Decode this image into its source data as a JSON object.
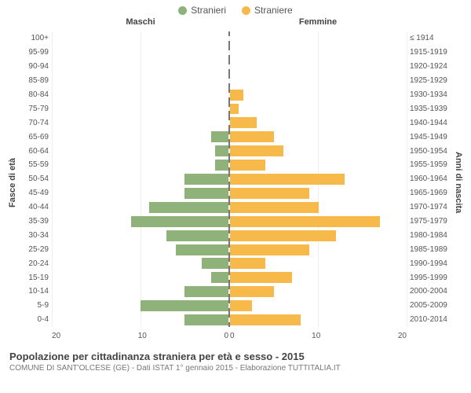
{
  "legend": {
    "male": {
      "label": "Stranieri",
      "color": "#8fb27a"
    },
    "female": {
      "label": "Straniere",
      "color": "#f7b94a"
    }
  },
  "headers": {
    "left": "Maschi",
    "right": "Femmine"
  },
  "axis_titles": {
    "left": "Fasce di età",
    "right": "Anni di nascita"
  },
  "scale": {
    "max": 20,
    "ticks_left": [
      "20",
      "10",
      "0"
    ],
    "ticks_right": [
      "0",
      "10",
      "20"
    ]
  },
  "colors": {
    "male_bar": "#8fb27a",
    "female_bar": "#f7b94a",
    "grid": "#eeeeee",
    "divider": "#777777"
  },
  "rows": [
    {
      "age": "100+",
      "birth": "≤ 1914",
      "m": 0,
      "f": 0
    },
    {
      "age": "95-99",
      "birth": "1915-1919",
      "m": 0,
      "f": 0
    },
    {
      "age": "90-94",
      "birth": "1920-1924",
      "m": 0,
      "f": 0
    },
    {
      "age": "85-89",
      "birth": "1925-1929",
      "m": 0,
      "f": 0
    },
    {
      "age": "80-84",
      "birth": "1930-1934",
      "m": 0,
      "f": 1.5
    },
    {
      "age": "75-79",
      "birth": "1935-1939",
      "m": 0,
      "f": 1
    },
    {
      "age": "70-74",
      "birth": "1940-1944",
      "m": 0,
      "f": 3
    },
    {
      "age": "65-69",
      "birth": "1945-1949",
      "m": 2,
      "f": 5
    },
    {
      "age": "60-64",
      "birth": "1950-1954",
      "m": 1.5,
      "f": 6
    },
    {
      "age": "55-59",
      "birth": "1955-1959",
      "m": 1.5,
      "f": 4
    },
    {
      "age": "50-54",
      "birth": "1960-1964",
      "m": 5,
      "f": 13
    },
    {
      "age": "45-49",
      "birth": "1965-1969",
      "m": 5,
      "f": 9
    },
    {
      "age": "40-44",
      "birth": "1970-1974",
      "m": 9,
      "f": 10
    },
    {
      "age": "35-39",
      "birth": "1975-1979",
      "m": 11,
      "f": 17
    },
    {
      "age": "30-34",
      "birth": "1980-1984",
      "m": 7,
      "f": 12
    },
    {
      "age": "25-29",
      "birth": "1985-1989",
      "m": 6,
      "f": 9
    },
    {
      "age": "20-24",
      "birth": "1990-1994",
      "m": 3,
      "f": 4
    },
    {
      "age": "15-19",
      "birth": "1995-1999",
      "m": 2,
      "f": 7
    },
    {
      "age": "10-14",
      "birth": "2000-2004",
      "m": 5,
      "f": 5
    },
    {
      "age": "5-9",
      "birth": "2005-2009",
      "m": 10,
      "f": 2.5
    },
    {
      "age": "0-4",
      "birth": "2010-2014",
      "m": 5,
      "f": 8
    }
  ],
  "footer": {
    "title": "Popolazione per cittadinanza straniera per età e sesso - 2015",
    "subtitle": "COMUNE DI SANT'OLCESE (GE) - Dati ISTAT 1° gennaio 2015 - Elaborazione TUTTITALIA.IT"
  }
}
